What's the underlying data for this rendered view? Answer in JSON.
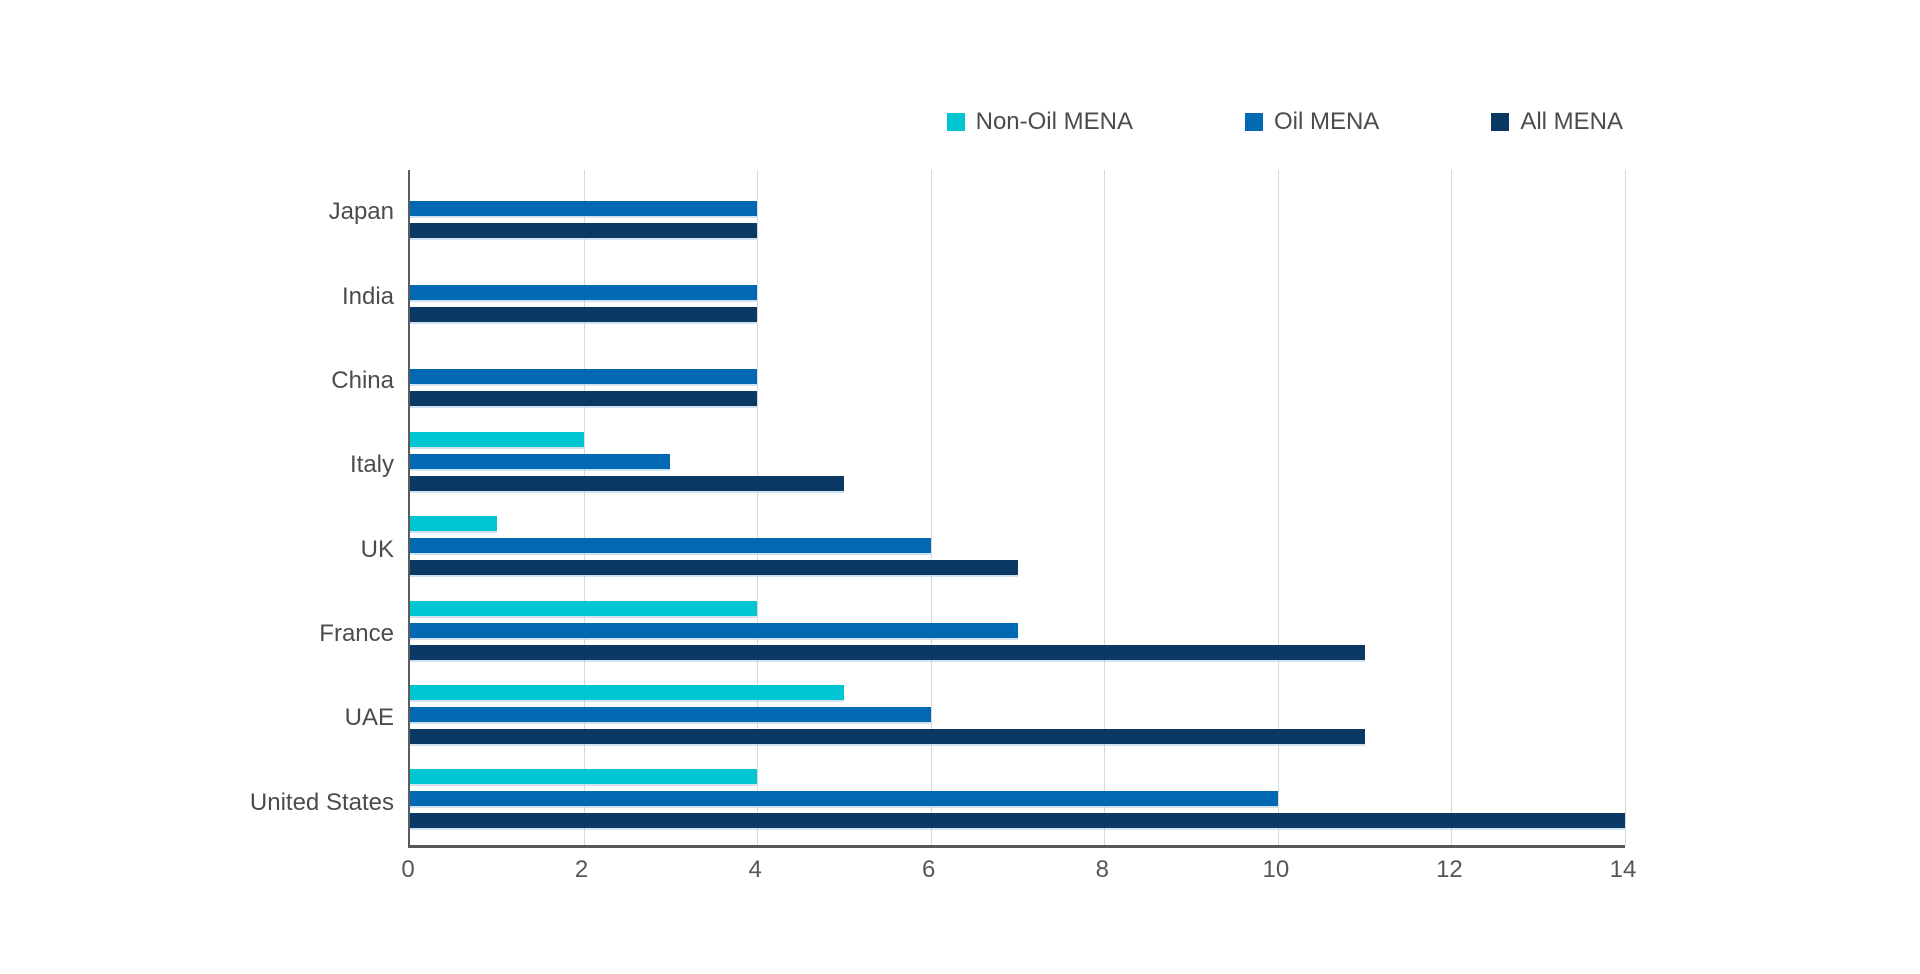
{
  "chart_data": {
    "type": "bar",
    "orientation": "horizontal",
    "categories": [
      "Japan",
      "India",
      "China",
      "Italy",
      "UK",
      "France",
      "UAE",
      "United States"
    ],
    "series": [
      {
        "name": "Non-Oil MENA",
        "color": "#00c6d2",
        "values": [
          0,
          0,
          0,
          2,
          1,
          4,
          5,
          4
        ]
      },
      {
        "name": "Oil MENA",
        "color": "#0069b1",
        "values": [
          4,
          4,
          4,
          3,
          6,
          7,
          6,
          10
        ]
      },
      {
        "name": "All MENA",
        "color": "#0a3a64",
        "values": [
          4,
          4,
          4,
          5,
          7,
          11,
          11,
          14
        ]
      }
    ],
    "x_ticks": [
      0,
      2,
      4,
      6,
      8,
      10,
      12,
      14
    ],
    "xlim": [
      0,
      14
    ],
    "xlabel": "",
    "ylabel": "",
    "title": "",
    "grid": true,
    "legend_position": "top-right"
  },
  "style": {
    "series_colors": [
      "#00c6d2",
      "#0069b1",
      "#0a3a64"
    ],
    "axis_color": "#56575a",
    "grid_color": "#d8d8d8",
    "label_color": "#4c4c4c",
    "background": "#ffffff"
  }
}
